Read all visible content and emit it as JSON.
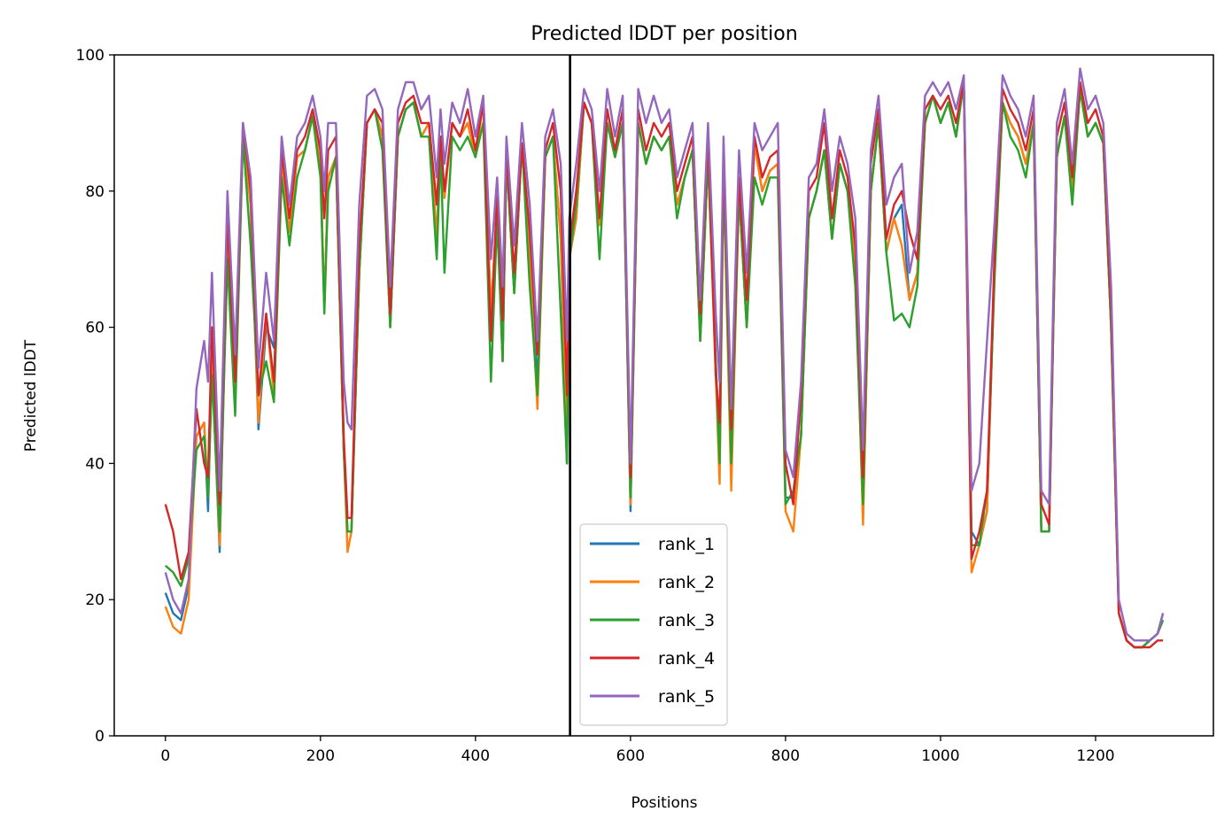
{
  "colors": {
    "rank_1": "#1f77b4",
    "rank_2": "#ff7f0e",
    "rank_3": "#2ca02c",
    "rank_4": "#d62728",
    "rank_5": "#9467bd",
    "divider": "#000000"
  },
  "chart_data": {
    "type": "line",
    "title": "Predicted lDDT per position",
    "xlabel": "Positions",
    "ylabel": "Predicted lDDT",
    "xlim": [
      -66,
      1352
    ],
    "ylim": [
      0,
      100
    ],
    "xticks": [
      0,
      200,
      400,
      600,
      800,
      1000,
      1200
    ],
    "yticks": [
      0,
      20,
      40,
      60,
      80,
      100
    ],
    "grid": false,
    "legend_position": "lower-center",
    "vertical_line_x": 522,
    "x": [
      0,
      10,
      20,
      30,
      40,
      50,
      55,
      60,
      70,
      80,
      90,
      100,
      110,
      120,
      130,
      140,
      150,
      160,
      170,
      180,
      190,
      200,
      205,
      210,
      220,
      230,
      235,
      240,
      250,
      260,
      270,
      280,
      290,
      300,
      310,
      320,
      330,
      340,
      350,
      355,
      360,
      370,
      380,
      390,
      400,
      410,
      420,
      428,
      435,
      440,
      450,
      460,
      470,
      480,
      490,
      500,
      510,
      518,
      521,
      530,
      540,
      550,
      560,
      570,
      580,
      590,
      600,
      610,
      620,
      630,
      640,
      650,
      660,
      670,
      680,
      690,
      700,
      710,
      715,
      720,
      730,
      740,
      750,
      760,
      770,
      780,
      790,
      800,
      810,
      820,
      830,
      840,
      850,
      860,
      870,
      880,
      890,
      900,
      910,
      920,
      930,
      940,
      950,
      960,
      970,
      980,
      990,
      1000,
      1010,
      1020,
      1030,
      1040,
      1050,
      1060,
      1070,
      1080,
      1090,
      1100,
      1110,
      1120,
      1130,
      1140,
      1150,
      1160,
      1170,
      1180,
      1190,
      1200,
      1210,
      1220,
      1230,
      1240,
      1250,
      1260,
      1270,
      1280,
      1287
    ],
    "series": [
      {
        "name": "rank_1",
        "values": [
          21,
          18,
          17,
          22,
          44,
          46,
          33,
          55,
          27,
          74,
          50,
          88,
          78,
          45,
          60,
          57,
          84,
          74,
          85,
          86,
          91,
          84,
          63,
          82,
          85,
          42,
          30,
          30,
          68,
          90,
          92,
          88,
          60,
          88,
          92,
          93,
          88,
          90,
          73,
          88,
          79,
          90,
          88,
          90,
          85,
          93,
          62,
          78,
          55,
          85,
          65,
          87,
          70,
          52,
          85,
          88,
          73,
          40,
          70,
          76,
          93,
          90,
          75,
          90,
          85,
          90,
          33,
          90,
          84,
          88,
          86,
          88,
          78,
          82,
          86,
          58,
          85,
          55,
          42,
          83,
          42,
          80,
          60,
          87,
          80,
          83,
          84,
          35,
          35,
          44,
          76,
          80,
          86,
          73,
          84,
          80,
          70,
          32,
          80,
          90,
          71,
          76,
          78,
          64,
          68,
          90,
          94,
          90,
          93,
          88,
          96,
          30,
          28,
          33,
          70,
          93,
          90,
          88,
          84,
          90,
          30,
          30,
          85,
          91,
          80,
          95,
          88,
          90,
          87,
          60,
          18,
          14,
          13,
          13,
          14,
          15,
          18
        ]
      },
      {
        "name": "rank_2",
        "values": [
          19,
          16,
          15,
          20,
          44,
          46,
          35,
          55,
          28,
          74,
          50,
          88,
          78,
          46,
          62,
          50,
          84,
          74,
          85,
          86,
          91,
          84,
          63,
          82,
          85,
          42,
          27,
          30,
          68,
          90,
          92,
          88,
          60,
          88,
          92,
          93,
          88,
          90,
          73,
          88,
          79,
          90,
          88,
          90,
          85,
          93,
          62,
          78,
          55,
          85,
          65,
          87,
          70,
          48,
          85,
          88,
          73,
          45,
          70,
          76,
          93,
          90,
          75,
          90,
          85,
          90,
          34,
          90,
          84,
          88,
          86,
          88,
          78,
          82,
          86,
          58,
          85,
          53,
          37,
          83,
          36,
          80,
          60,
          87,
          80,
          83,
          84,
          33,
          30,
          44,
          76,
          80,
          86,
          73,
          84,
          80,
          70,
          31,
          80,
          90,
          71,
          76,
          72,
          64,
          68,
          90,
          94,
          90,
          93,
          88,
          96,
          24,
          28,
          33,
          70,
          93,
          90,
          88,
          84,
          90,
          30,
          30,
          85,
          91,
          80,
          95,
          88,
          90,
          87,
          60,
          18,
          14,
          13,
          13,
          14,
          15,
          17
        ]
      },
      {
        "name": "rank_3",
        "values": [
          25,
          24,
          22,
          26,
          42,
          44,
          35,
          53,
          30,
          70,
          47,
          88,
          72,
          50,
          55,
          49,
          82,
          72,
          82,
          86,
          91,
          82,
          62,
          80,
          85,
          42,
          30,
          30,
          68,
          90,
          92,
          86,
          60,
          88,
          92,
          93,
          88,
          88,
          70,
          86,
          68,
          88,
          86,
          88,
          85,
          90,
          52,
          76,
          55,
          85,
          65,
          87,
          66,
          50,
          85,
          88,
          62,
          40,
          70,
          78,
          93,
          90,
          70,
          90,
          85,
          90,
          35,
          90,
          84,
          88,
          86,
          88,
          76,
          82,
          86,
          58,
          85,
          55,
          40,
          83,
          40,
          80,
          60,
          82,
          78,
          82,
          82,
          34,
          36,
          44,
          76,
          80,
          86,
          73,
          84,
          80,
          66,
          34,
          80,
          90,
          71,
          61,
          62,
          60,
          66,
          90,
          94,
          90,
          93,
          88,
          96,
          28,
          28,
          36,
          68,
          93,
          88,
          86,
          82,
          90,
          30,
          30,
          85,
          91,
          78,
          95,
          88,
          90,
          87,
          60,
          18,
          14,
          13,
          13,
          14,
          15,
          17
        ]
      },
      {
        "name": "rank_4",
        "values": [
          34,
          30,
          23,
          27,
          48,
          40,
          38,
          60,
          34,
          76,
          52,
          90,
          80,
          50,
          62,
          52,
          86,
          76,
          86,
          88,
          92,
          86,
          76,
          86,
          88,
          44,
          32,
          32,
          72,
          90,
          92,
          90,
          62,
          90,
          93,
          94,
          90,
          90,
          78,
          88,
          80,
          90,
          88,
          92,
          86,
          93,
          58,
          80,
          61,
          86,
          68,
          87,
          74,
          56,
          86,
          90,
          80,
          50,
          72,
          80,
          93,
          90,
          76,
          92,
          86,
          92,
          38,
          92,
          86,
          90,
          88,
          90,
          80,
          84,
          88,
          62,
          88,
          53,
          46,
          86,
          45,
          82,
          64,
          88,
          82,
          85,
          86,
          40,
          34,
          50,
          80,
          82,
          90,
          76,
          86,
          82,
          72,
          38,
          84,
          92,
          73,
          78,
          80,
          74,
          70,
          92,
          94,
          92,
          94,
          90,
          96,
          26,
          30,
          36,
          72,
          95,
          92,
          90,
          86,
          92,
          34,
          31,
          88,
          93,
          82,
          96,
          90,
          92,
          88,
          62,
          18,
          14,
          13,
          13,
          13,
          14,
          14
        ]
      },
      {
        "name": "rank_5",
        "values": [
          24,
          20,
          18,
          23,
          51,
          58,
          52,
          68,
          36,
          80,
          56,
          90,
          82,
          54,
          68,
          58,
          88,
          78,
          88,
          90,
          94,
          88,
          80,
          90,
          90,
          52,
          46,
          45,
          78,
          94,
          95,
          92,
          66,
          92,
          96,
          96,
          92,
          94,
          82,
          92,
          84,
          93,
          90,
          95,
          88,
          94,
          70,
          82,
          66,
          88,
          72,
          90,
          78,
          58,
          88,
          92,
          84,
          58,
          76,
          84,
          95,
          92,
          80,
          95,
          88,
          94,
          40,
          95,
          90,
          94,
          90,
          92,
          82,
          86,
          90,
          64,
          90,
          62,
          52,
          88,
          48,
          86,
          68,
          90,
          86,
          88,
          90,
          42,
          38,
          52,
          82,
          84,
          92,
          80,
          88,
          84,
          76,
          42,
          86,
          94,
          78,
          82,
          84,
          68,
          74,
          94,
          96,
          94,
          96,
          92,
          97,
          36,
          40,
          58,
          76,
          97,
          94,
          92,
          88,
          94,
          36,
          34,
          90,
          95,
          84,
          98,
          92,
          94,
          90,
          66,
          20,
          15,
          14,
          14,
          14,
          15,
          18
        ]
      }
    ]
  }
}
